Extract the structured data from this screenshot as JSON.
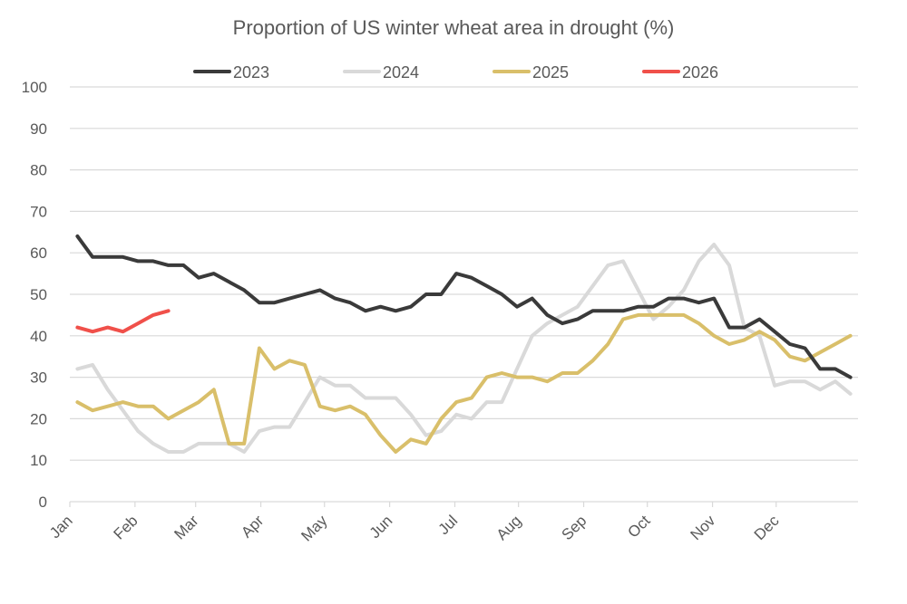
{
  "chart_data": {
    "type": "line",
    "title": "Proportion of US winter wheat area in drought (%)",
    "xlabel": "",
    "ylabel": "",
    "ylim": [
      0,
      100
    ],
    "yticks": [
      0,
      10,
      20,
      30,
      40,
      50,
      60,
      70,
      80,
      90,
      100
    ],
    "xlim_weeks": [
      0,
      52
    ],
    "month_ticks": [
      {
        "label": "Jan",
        "week": 0
      },
      {
        "label": "Feb",
        "week": 4.3
      },
      {
        "label": "Mar",
        "week": 8.3
      },
      {
        "label": "Apr",
        "week": 12.6
      },
      {
        "label": "May",
        "week": 16.8
      },
      {
        "label": "Jun",
        "week": 21.1
      },
      {
        "label": "Jul",
        "week": 25.4
      },
      {
        "label": "Aug",
        "week": 29.6
      },
      {
        "label": "Sep",
        "week": 33.9
      },
      {
        "label": "Oct",
        "week": 38.1
      },
      {
        "label": "Nov",
        "week": 42.4
      },
      {
        "label": "Dec",
        "week": 46.6
      }
    ],
    "grid": true,
    "legend_position": "top",
    "x_start_week": 0.5,
    "series": [
      {
        "name": "2023",
        "color": "#3a3a3a",
        "values": [
          64,
          59,
          59,
          59,
          58,
          58,
          57,
          57,
          54,
          55,
          53,
          51,
          48,
          48,
          49,
          50,
          51,
          49,
          48,
          46,
          47,
          46,
          47,
          50,
          50,
          55,
          54,
          52,
          50,
          47,
          49,
          45,
          43,
          44,
          46,
          46,
          46,
          47,
          47,
          49,
          49,
          48,
          49,
          42,
          42,
          44,
          41,
          38,
          37,
          32,
          32,
          30
        ]
      },
      {
        "name": "2024",
        "color": "#d9d9d9",
        "values": [
          32,
          33,
          27,
          22,
          17,
          14,
          12,
          12,
          14,
          14,
          14,
          12,
          17,
          18,
          18,
          24,
          30,
          28,
          28,
          25,
          25,
          25,
          21,
          16,
          17,
          21,
          20,
          24,
          24,
          32,
          40,
          43,
          45,
          47,
          52,
          57,
          58,
          51,
          44,
          47,
          51,
          58,
          62,
          57,
          42,
          40,
          28,
          29,
          29,
          27,
          29,
          26
        ]
      },
      {
        "name": "2025",
        "color": "#d9bf6a",
        "values": [
          24,
          22,
          23,
          24,
          23,
          23,
          20,
          22,
          24,
          27,
          14,
          14,
          37,
          32,
          34,
          33,
          23,
          22,
          23,
          21,
          16,
          12,
          15,
          14,
          20,
          24,
          25,
          30,
          31,
          30,
          30,
          29,
          31,
          31,
          34,
          38,
          44,
          45,
          45,
          45,
          45,
          43,
          40,
          38,
          39,
          41,
          39,
          35,
          34,
          36,
          38,
          40
        ]
      },
      {
        "name": "2026",
        "color": "#f0504a",
        "values": [
          42,
          41,
          42,
          41,
          43,
          45,
          46
        ]
      }
    ]
  }
}
